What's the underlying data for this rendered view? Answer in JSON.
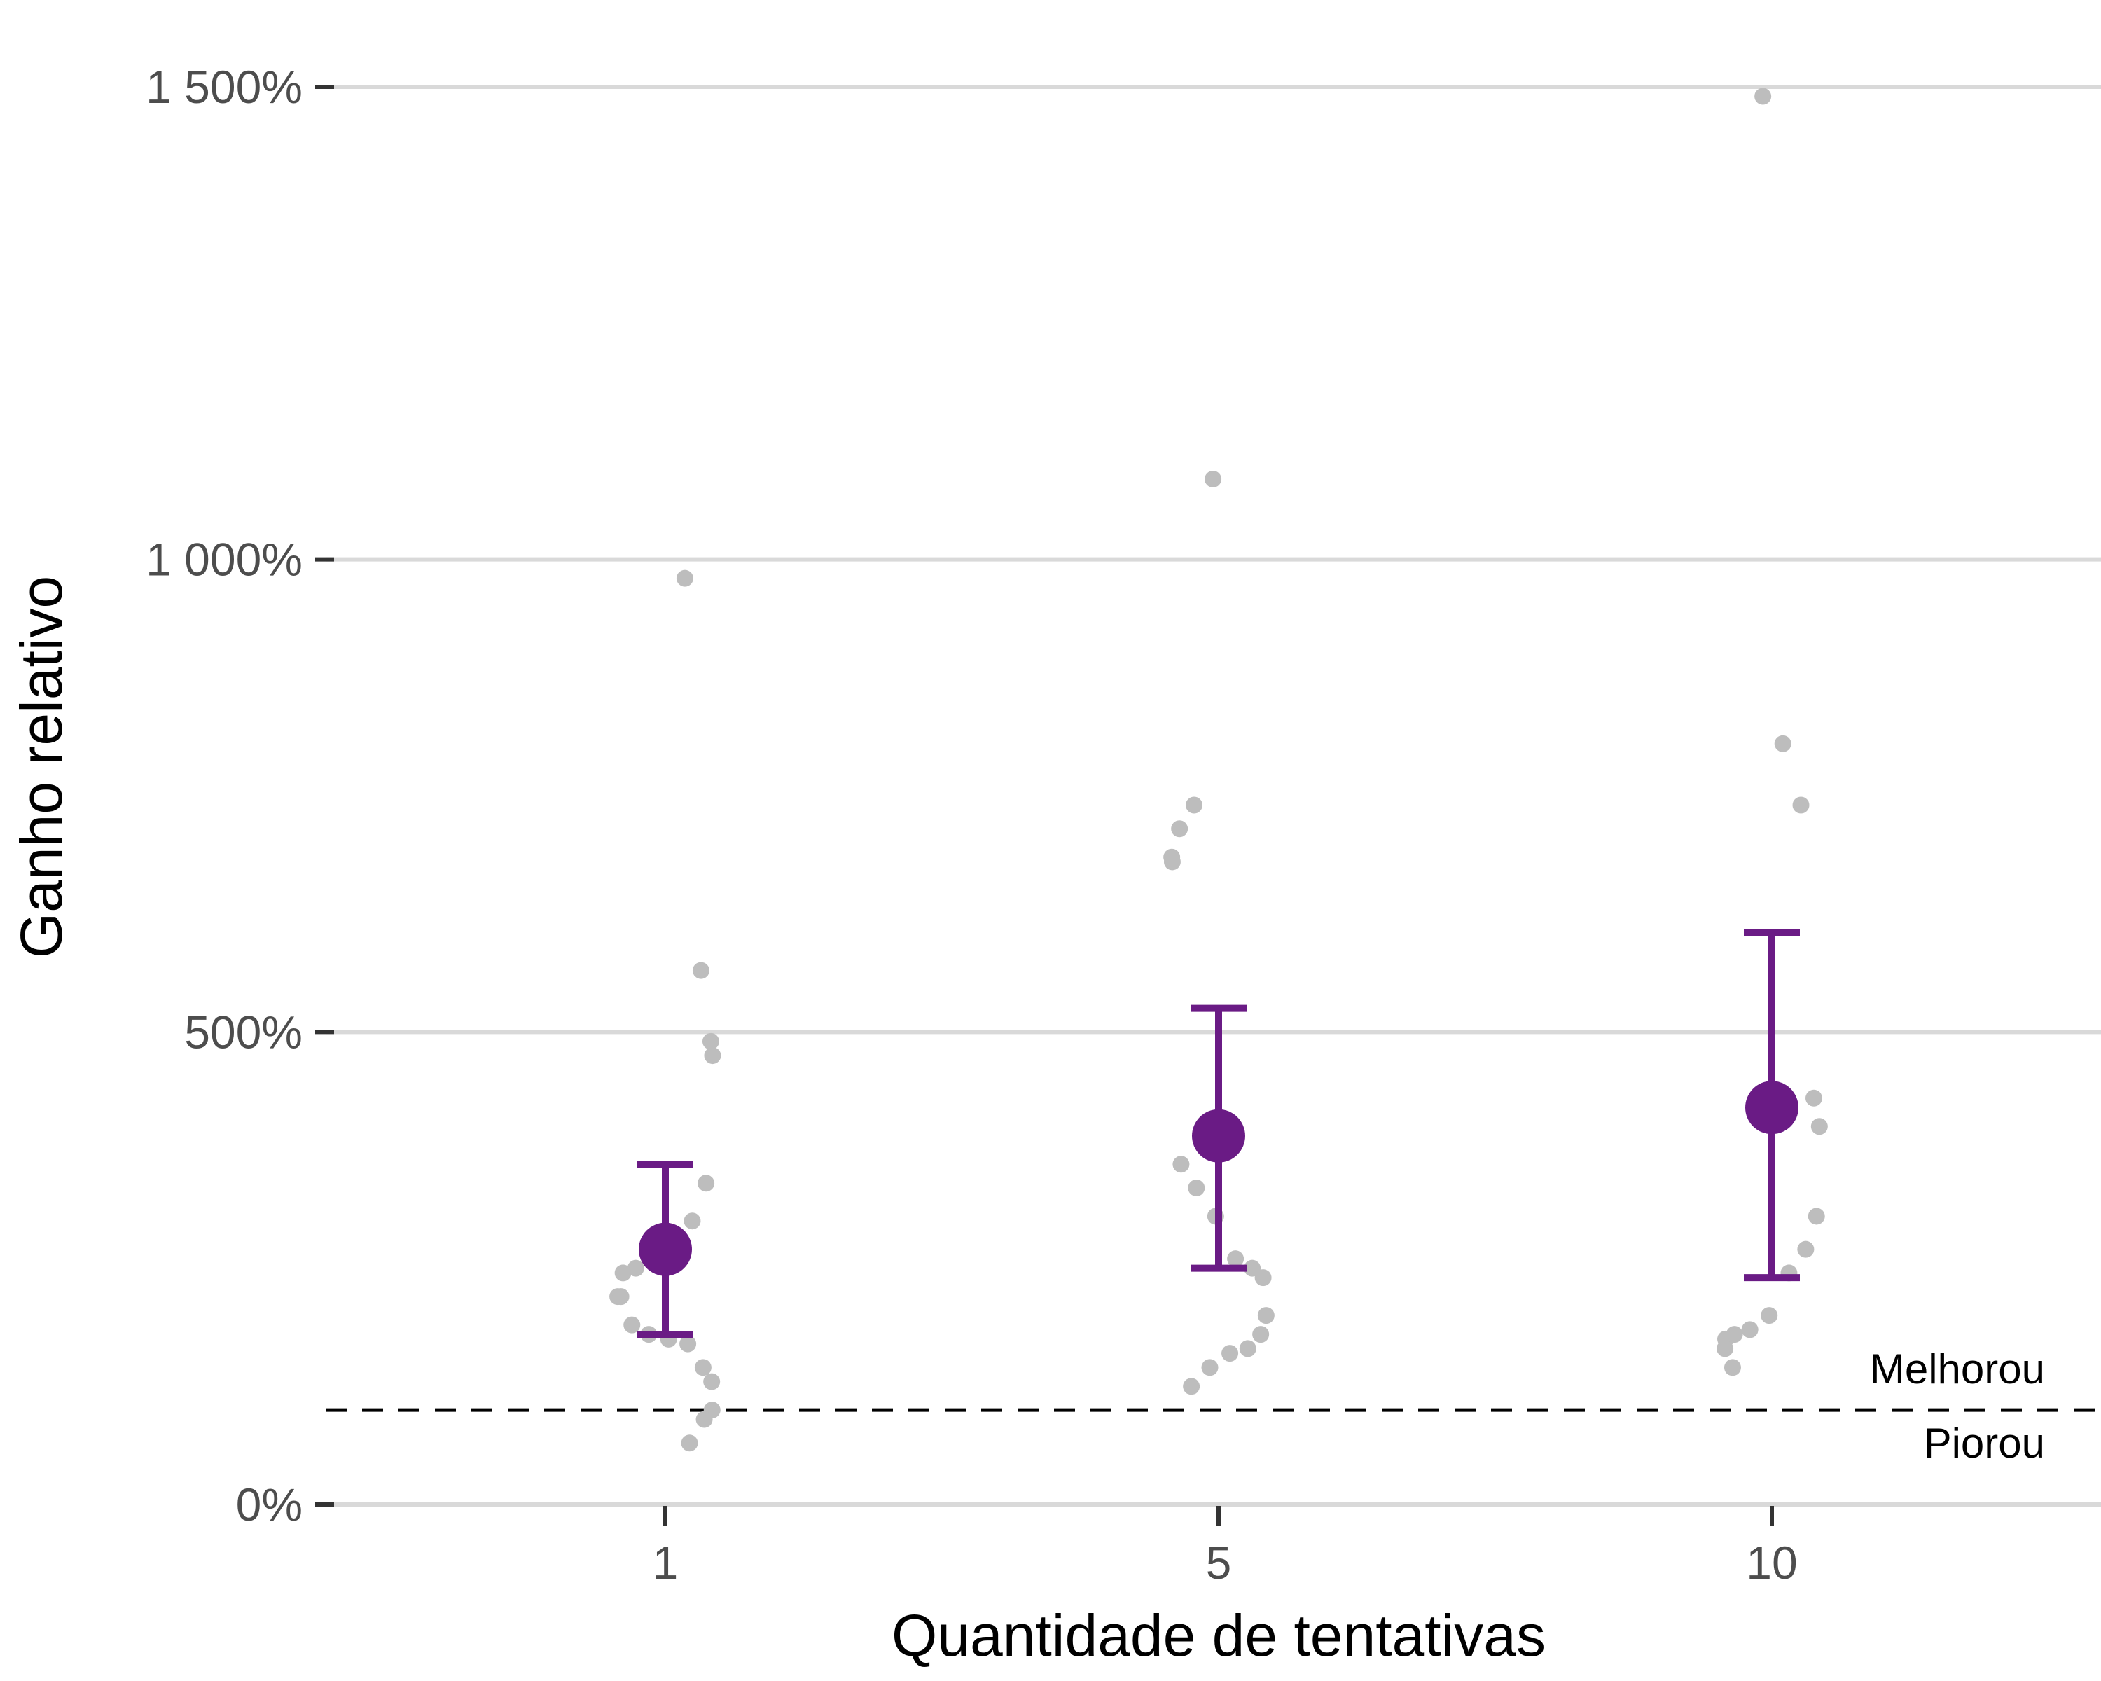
{
  "chart_data": {
    "type": "scatter",
    "title": "",
    "xlabel": "Quantidade de tentativas",
    "ylabel": "Ganho relativo",
    "categories": [
      "1",
      "5",
      "10"
    ],
    "y_ticks": [
      {
        "value": 0,
        "label": "0%"
      },
      {
        "value": 500,
        "label": "500%"
      },
      {
        "value": 1000,
        "label": "1 000%"
      },
      {
        "value": 1500,
        "label": "1 500%"
      }
    ],
    "ylim": [
      0,
      1500
    ],
    "grid": "horizontal",
    "reference_line": {
      "value": 100,
      "style": "dashed",
      "label_above": "Melhorou",
      "label_below": "Piorou"
    },
    "colors": {
      "points": "#bdbdbd",
      "summary": "#6a1b85",
      "grid": "#d9d9d9",
      "reference": "#000000"
    },
    "raw_points": [
      {
        "category": "1",
        "values": [
          980,
          565,
          490,
          475,
          340,
          300,
          280,
          270,
          250,
          245,
          220,
          220,
          190,
          180,
          175,
          170,
          145,
          130,
          100,
          90,
          65
        ]
      },
      {
        "category": "5",
        "values": [
          1085,
          740,
          715,
          685,
          680,
          360,
          335,
          305,
          260,
          250,
          240,
          200,
          180,
          165,
          160,
          145,
          125
        ]
      },
      {
        "category": "10",
        "values": [
          1490,
          805,
          740,
          430,
          400,
          305,
          270,
          245,
          200,
          185,
          180,
          175,
          165,
          145
        ]
      }
    ],
    "summary": [
      {
        "category": "1",
        "mean": 270,
        "lower": 180,
        "upper": 360
      },
      {
        "category": "5",
        "mean": 390,
        "lower": 250,
        "upper": 525
      },
      {
        "category": "10",
        "mean": 420,
        "lower": 240,
        "upper": 605
      }
    ]
  }
}
